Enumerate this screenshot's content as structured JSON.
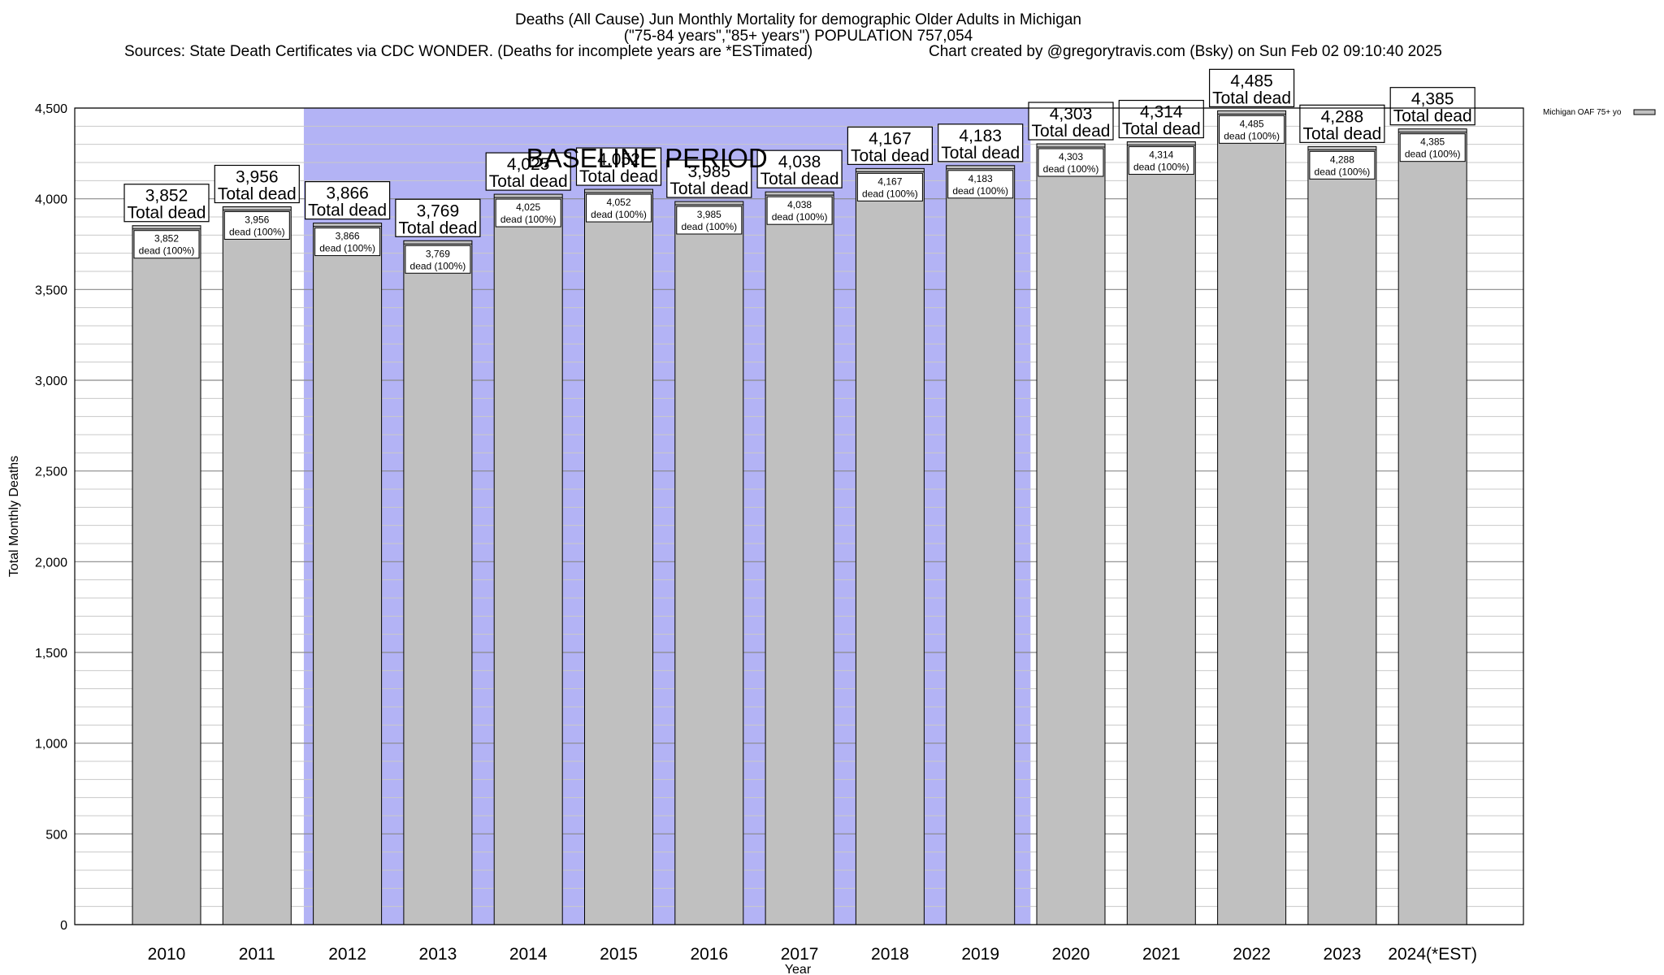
{
  "header": {
    "title_line1": "Deaths (All Cause) Jun Monthly Mortality for demographic Older Adults in Michigan",
    "title_line2": "(\"75-84 years\",\"85+ years\") POPULATION 757,054",
    "sources": "Sources: State Death Certificates via CDC WONDER. (Deaths for incomplete years are *ESTimated)",
    "credit": "Chart created by @gregorytravis.com (Bsky) on Sun Feb 02 09:10:40 2025"
  },
  "chart_data": {
    "type": "bar",
    "categories": [
      "2010",
      "2011",
      "2012",
      "2013",
      "2014",
      "2015",
      "2016",
      "2017",
      "2018",
      "2019",
      "2020",
      "2021",
      "2022",
      "2023",
      "2024(*EST)"
    ],
    "series": [
      {
        "name": "Michigan OAF 75+ yo",
        "values": [
          3852,
          3956,
          3866,
          3769,
          4025,
          4052,
          3985,
          4038,
          4167,
          4183,
          4303,
          4314,
          4485,
          4288,
          4385
        ],
        "color": "#c0c0c0"
      }
    ],
    "value_labels": [
      "3,852",
      "3,956",
      "3,866",
      "3,769",
      "4,025",
      "4,052",
      "3,985",
      "4,038",
      "4,167",
      "4,183",
      "4,303",
      "4,314",
      "4,485",
      "4,288",
      "4,385"
    ],
    "top_label_suffix": "Total dead",
    "inner_label_suffix": "dead (100%)",
    "xlabel": "Year",
    "ylabel": "Total Monthly Deaths",
    "ylim": [
      0,
      4500
    ],
    "yticks": [
      0,
      500,
      1000,
      1500,
      2000,
      2500,
      3000,
      3500,
      4000,
      4500
    ],
    "ytick_labels": [
      "0",
      "500",
      "1,000",
      "1,500",
      "2,000",
      "2,500",
      "3,000",
      "3,500",
      "4,000",
      "4,500"
    ],
    "minor_grid_step": 100,
    "grid": true,
    "legend_position": "top-right",
    "baseline": {
      "label": "BASELINE PERIOD",
      "start": "2012",
      "end": "2019",
      "color": "#b3b3f5"
    }
  }
}
